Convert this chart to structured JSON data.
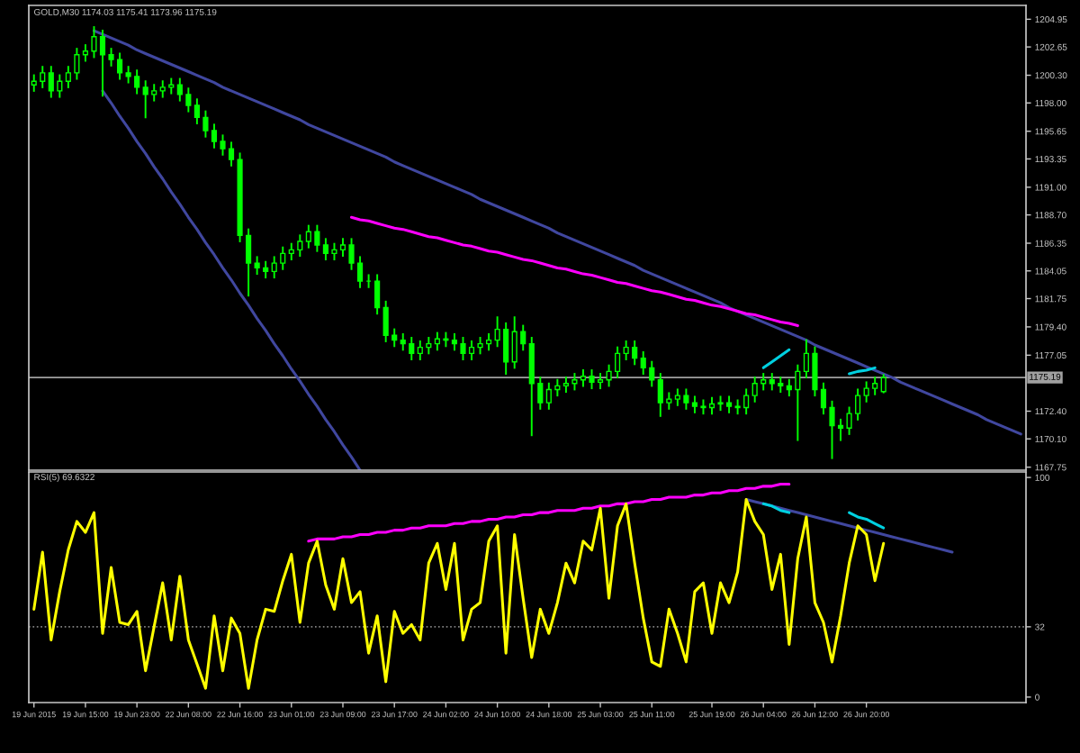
{
  "chart_data": [
    {
      "type": "candlestick",
      "title": "GOLD,M30 1174.03 1175.41 1173.96 1175.19",
      "color": "#00ff00",
      "categories": [
        null,
        null,
        null,
        null,
        null,
        null,
        null,
        null,
        null,
        null,
        null,
        null,
        null,
        null,
        null,
        null,
        null,
        null,
        null,
        null,
        null,
        null,
        null,
        null,
        null,
        null,
        null,
        null,
        null,
        null,
        null,
        null,
        null,
        null,
        null,
        null,
        null,
        null,
        null,
        null,
        null,
        null,
        null,
        null,
        null,
        null,
        null,
        null,
        null,
        null,
        null,
        null,
        null,
        null,
        null,
        null,
        null,
        null,
        null,
        null,
        null,
        null,
        null,
        null,
        null,
        null,
        null,
        null,
        null,
        null,
        null,
        null,
        null,
        null,
        null,
        null,
        null,
        null,
        null,
        null,
        null,
        null,
        null,
        null,
        null,
        null,
        null,
        null,
        null,
        null,
        null,
        null,
        null,
        null,
        null,
        null,
        null,
        null,
        null,
        null,
        null,
        null,
        null,
        null,
        null,
        null,
        null,
        null,
        null,
        null,
        null,
        null,
        null,
        null,
        null,
        null
      ],
      "ohlc": [
        [
          1199.5,
          1200.3,
          1199.0,
          1199.8
        ],
        [
          1199.8,
          1201.0,
          1199.3,
          1200.5
        ],
        [
          1200.5,
          1201.0,
          1198.5,
          1199.0
        ],
        [
          1199.0,
          1200.3,
          1198.5,
          1199.8
        ],
        [
          1199.8,
          1201.0,
          1199.3,
          1200.5
        ],
        [
          1200.5,
          1202.5,
          1200.0,
          1202.0
        ],
        [
          1202.0,
          1202.8,
          1201.5,
          1202.3
        ],
        [
          1202.3,
          1204.3,
          1201.8,
          1203.5
        ],
        [
          1203.5,
          1204.0,
          1198.6,
          1202.0
        ],
        [
          1202.0,
          1202.5,
          1201.1,
          1201.6
        ],
        [
          1201.6,
          1202.1,
          1200.0,
          1200.5
        ],
        [
          1200.5,
          1201.0,
          1199.7,
          1200.2
        ],
        [
          1200.2,
          1200.7,
          1198.8,
          1199.3
        ],
        [
          1199.3,
          1199.8,
          1196.8,
          1198.7
        ],
        [
          1198.7,
          1199.5,
          1198.2,
          1199.0
        ],
        [
          1199.0,
          1199.8,
          1198.5,
          1199.3
        ],
        [
          1199.3,
          1200.0,
          1198.8,
          1199.5
        ],
        [
          1199.5,
          1200.0,
          1198.2,
          1198.7
        ],
        [
          1198.7,
          1199.2,
          1197.3,
          1197.8
        ],
        [
          1197.8,
          1198.3,
          1196.3,
          1196.8
        ],
        [
          1196.8,
          1197.3,
          1195.2,
          1195.7
        ],
        [
          1195.7,
          1196.2,
          1194.3,
          1194.8
        ],
        [
          1194.8,
          1195.3,
          1193.7,
          1194.2
        ],
        [
          1194.2,
          1194.7,
          1192.8,
          1193.3
        ],
        [
          1193.3,
          1193.8,
          1186.5,
          1187.0
        ],
        [
          1187.0,
          1187.5,
          1182.0,
          1184.7
        ],
        [
          1184.7,
          1185.2,
          1183.8,
          1184.3
        ],
        [
          1184.3,
          1184.8,
          1183.5,
          1184.0
        ],
        [
          1184.0,
          1185.2,
          1183.5,
          1184.7
        ],
        [
          1184.7,
          1186.0,
          1184.2,
          1185.5
        ],
        [
          1185.5,
          1186.3,
          1185.0,
          1185.8
        ],
        [
          1185.8,
          1187.0,
          1185.3,
          1186.5
        ],
        [
          1186.5,
          1187.8,
          1186.0,
          1187.3
        ],
        [
          1187.3,
          1187.8,
          1185.7,
          1186.2
        ],
        [
          1186.2,
          1186.7,
          1185.0,
          1185.5
        ],
        [
          1185.5,
          1186.3,
          1185.0,
          1185.8
        ],
        [
          1185.8,
          1186.7,
          1185.3,
          1186.2
        ],
        [
          1186.2,
          1186.7,
          1184.2,
          1184.7
        ],
        [
          1184.7,
          1185.2,
          1182.7,
          1183.2
        ],
        [
          1183.2,
          1183.7,
          1182.7,
          1183.2
        ],
        [
          1183.2,
          1183.7,
          1180.5,
          1181.0
        ],
        [
          1181.0,
          1181.5,
          1178.2,
          1178.7
        ],
        [
          1178.7,
          1179.2,
          1177.8,
          1178.3
        ],
        [
          1178.3,
          1178.8,
          1177.5,
          1178.0
        ],
        [
          1178.0,
          1178.5,
          1176.7,
          1177.2
        ],
        [
          1177.2,
          1178.2,
          1176.7,
          1177.7
        ],
        [
          1177.7,
          1178.5,
          1177.2,
          1178.0
        ],
        [
          1178.0,
          1178.9,
          1177.5,
          1178.4
        ],
        [
          1178.4,
          1178.9,
          1177.8,
          1178.3
        ],
        [
          1178.3,
          1178.8,
          1177.5,
          1178.0
        ],
        [
          1178.0,
          1178.5,
          1176.7,
          1177.2
        ],
        [
          1177.2,
          1178.2,
          1176.7,
          1177.7
        ],
        [
          1177.7,
          1178.5,
          1177.2,
          1178.0
        ],
        [
          1178.0,
          1178.8,
          1177.5,
          1178.3
        ],
        [
          1178.3,
          1180.2,
          1177.8,
          1179.2
        ],
        [
          1179.2,
          1179.7,
          1175.5,
          1176.5
        ],
        [
          1176.5,
          1180.2,
          1176.0,
          1179.0
        ],
        [
          1179.0,
          1179.5,
          1177.5,
          1178.0
        ],
        [
          1178.0,
          1178.5,
          1170.4,
          1174.7
        ],
        [
          1174.7,
          1175.2,
          1172.6,
          1173.1
        ],
        [
          1173.1,
          1174.7,
          1172.6,
          1174.2
        ],
        [
          1174.2,
          1175.0,
          1173.7,
          1174.5
        ],
        [
          1174.5,
          1175.2,
          1174.0,
          1174.7
        ],
        [
          1174.7,
          1175.5,
          1174.2,
          1175.0
        ],
        [
          1175.0,
          1175.8,
          1174.5,
          1175.3
        ],
        [
          1175.3,
          1175.8,
          1174.3,
          1174.8
        ],
        [
          1174.8,
          1175.5,
          1174.3,
          1175.0
        ],
        [
          1175.0,
          1176.2,
          1174.5,
          1175.7
        ],
        [
          1175.7,
          1177.7,
          1175.2,
          1177.2
        ],
        [
          1177.2,
          1178.2,
          1176.7,
          1177.7
        ],
        [
          1177.7,
          1178.2,
          1176.3,
          1176.8
        ],
        [
          1176.8,
          1177.3,
          1175.5,
          1176.0
        ],
        [
          1176.0,
          1176.5,
          1174.5,
          1175.0
        ],
        [
          1175.0,
          1175.5,
          1172.0,
          1173.1
        ],
        [
          1173.1,
          1173.9,
          1172.6,
          1173.4
        ],
        [
          1173.4,
          1174.2,
          1172.9,
          1173.7
        ],
        [
          1173.7,
          1174.2,
          1172.6,
          1173.1
        ],
        [
          1173.1,
          1173.6,
          1172.3,
          1172.8
        ],
        [
          1172.8,
          1173.3,
          1172.2,
          1172.7
        ],
        [
          1172.7,
          1173.5,
          1172.2,
          1173.0
        ],
        [
          1173.0,
          1173.6,
          1172.5,
          1173.1
        ],
        [
          1173.1,
          1173.6,
          1172.3,
          1172.8
        ],
        [
          1172.8,
          1173.3,
          1172.2,
          1172.7
        ],
        [
          1172.7,
          1174.2,
          1172.2,
          1173.7
        ],
        [
          1173.7,
          1175.2,
          1173.2,
          1174.7
        ],
        [
          1174.7,
          1175.5,
          1174.2,
          1175.0
        ],
        [
          1175.0,
          1175.5,
          1174.2,
          1174.7
        ],
        [
          1174.7,
          1175.2,
          1174.0,
          1174.5
        ],
        [
          1174.5,
          1175.0,
          1173.7,
          1174.2
        ],
        [
          1174.2,
          1176.2,
          1170.0,
          1175.7
        ],
        [
          1175.7,
          1178.3,
          1175.2,
          1177.2
        ],
        [
          1177.2,
          1177.7,
          1173.7,
          1174.2
        ],
        [
          1174.2,
          1174.7,
          1172.2,
          1172.7
        ],
        [
          1172.7,
          1173.2,
          1168.5,
          1171.2
        ],
        [
          1171.2,
          1171.7,
          1170.0,
          1171.0
        ],
        [
          1171.0,
          1172.7,
          1170.5,
          1172.2
        ],
        [
          1172.2,
          1174.2,
          1171.7,
          1173.7
        ],
        [
          1173.7,
          1174.8,
          1173.2,
          1174.3
        ],
        [
          1174.3,
          1175.2,
          1173.8,
          1174.7
        ],
        [
          1174.03,
          1175.41,
          1173.96,
          1175.19
        ],
        null,
        null,
        null,
        null,
        null,
        null,
        null,
        null,
        null,
        null,
        null,
        null,
        null,
        null,
        null,
        null
      ],
      "series": [
        {
          "type": "line",
          "color": "#40479f",
          "values": [
            null,
            null,
            null,
            null,
            null,
            null,
            null,
            1204.0,
            1203.7,
            1203.4,
            1203.1,
            1202.8,
            1202.4,
            1202.1,
            1201.8,
            1201.5,
            1201.2,
            1200.9,
            1200.6,
            1200.3,
            1200.0,
            1199.7,
            1199.3,
            1199.0,
            1198.7,
            1198.4,
            1198.1,
            1197.8,
            1197.5,
            1197.2,
            1196.9,
            1196.6,
            1196.2,
            1195.9,
            1195.6,
            1195.3,
            1195.0,
            1194.7,
            1194.4,
            1194.1,
            1193.8,
            1193.5,
            1193.1,
            1192.8,
            1192.5,
            1192.2,
            1191.9,
            1191.6,
            1191.3,
            1191.0,
            1190.7,
            1190.4,
            1190.0,
            1189.7,
            1189.4,
            1189.1,
            1188.8,
            1188.5,
            1188.2,
            1187.9,
            1187.6,
            1187.2,
            1186.9,
            1186.6,
            1186.3,
            1186.0,
            1185.7,
            1185.4,
            1185.1,
            1184.8,
            1184.5,
            1184.1,
            1183.8,
            1183.5,
            1183.2,
            1182.9,
            1182.6,
            1182.3,
            1182.0,
            1181.7,
            1181.4,
            1181.0,
            1180.7,
            1180.4,
            1180.1,
            1179.8,
            1179.5,
            1179.2,
            1178.9,
            1178.6,
            1178.3,
            1177.9,
            1177.6,
            1177.3,
            1177.0,
            1176.7,
            1176.4,
            1176.1,
            1175.8,
            1175.5,
            1175.2,
            1174.8,
            1174.5,
            1174.2,
            1173.9,
            1173.6,
            1173.3,
            1173.0,
            1172.7,
            1172.4,
            1172.1,
            1171.7,
            1171.4,
            1171.1,
            1170.8,
            1170.5
          ]
        },
        {
          "type": "line",
          "color": "#40479f",
          "values": [
            null,
            null,
            null,
            null,
            null,
            null,
            null,
            null,
            1199.0,
            1198.0,
            1196.9,
            1195.9,
            1194.8,
            1193.8,
            1192.7,
            1191.7,
            1190.6,
            1189.6,
            1188.5,
            1187.5,
            1186.4,
            1185.4,
            1184.3,
            1183.3,
            1182.2,
            1181.2,
            1180.1,
            1179.1,
            1178.0,
            1177.0,
            1175.9,
            1174.9,
            1173.8,
            1172.8,
            1171.7,
            1170.7,
            1169.6,
            1168.6,
            1167.5,
            null,
            null,
            null,
            null,
            null,
            null,
            null,
            null,
            null,
            null,
            null,
            null,
            null,
            null,
            null,
            null,
            null,
            null,
            null,
            null,
            null,
            null,
            null,
            null,
            null,
            null,
            null,
            null,
            null,
            null,
            null,
            null,
            null,
            null,
            null,
            null,
            null,
            null,
            null,
            null,
            null,
            null,
            null,
            null,
            null,
            null,
            null,
            null,
            null,
            null,
            null,
            null,
            null,
            null,
            null,
            null,
            null,
            null,
            null,
            null,
            null,
            null,
            null,
            null,
            null,
            null,
            null,
            null,
            null,
            null,
            null,
            null,
            null,
            null,
            null,
            null,
            null
          ]
        },
        {
          "type": "line",
          "color": "#ff00ff",
          "values": [
            null,
            null,
            null,
            null,
            null,
            null,
            null,
            null,
            null,
            null,
            null,
            null,
            null,
            null,
            null,
            null,
            null,
            null,
            null,
            null,
            null,
            null,
            null,
            null,
            null,
            null,
            null,
            null,
            null,
            null,
            null,
            null,
            null,
            null,
            null,
            null,
            null,
            1188.5,
            1188.3,
            1188.2,
            1188.0,
            1187.8,
            1187.6,
            1187.5,
            1187.3,
            1187.1,
            1186.9,
            1186.8,
            1186.6,
            1186.4,
            1186.2,
            1186.1,
            1185.9,
            1185.7,
            1185.6,
            1185.4,
            1185.2,
            1185.0,
            1184.9,
            1184.7,
            1184.5,
            1184.3,
            1184.2,
            1184.0,
            1183.8,
            1183.7,
            1183.5,
            1183.3,
            1183.1,
            1183.0,
            1182.8,
            1182.6,
            1182.4,
            1182.3,
            1182.1,
            1181.9,
            1181.7,
            1181.6,
            1181.4,
            1181.2,
            1181.1,
            1180.9,
            1180.7,
            1180.5,
            1180.4,
            1180.2,
            1180.0,
            1179.8,
            1179.7,
            1179.5,
            null,
            null,
            null,
            null,
            null,
            null,
            null,
            null,
            null,
            null,
            null,
            null,
            null,
            null,
            null,
            null,
            null,
            null,
            null,
            null,
            null,
            null,
            null,
            null,
            null,
            null
          ]
        },
        {
          "type": "line",
          "color": "#00d0e0",
          "values": [
            null,
            null,
            null,
            null,
            null,
            null,
            null,
            null,
            null,
            null,
            null,
            null,
            null,
            null,
            null,
            null,
            null,
            null,
            null,
            null,
            null,
            null,
            null,
            null,
            null,
            null,
            null,
            null,
            null,
            null,
            null,
            null,
            null,
            null,
            null,
            null,
            null,
            null,
            null,
            null,
            null,
            null,
            null,
            null,
            null,
            null,
            null,
            null,
            null,
            null,
            null,
            null,
            null,
            null,
            null,
            null,
            null,
            null,
            null,
            null,
            null,
            null,
            null,
            null,
            null,
            null,
            null,
            null,
            null,
            null,
            null,
            null,
            null,
            null,
            null,
            null,
            null,
            null,
            null,
            null,
            null,
            null,
            null,
            null,
            null,
            1176.0,
            1176.5,
            1177.0,
            1177.5,
            null,
            null,
            null,
            null,
            null,
            null,
            null,
            null,
            null,
            null,
            null,
            null,
            null,
            null,
            null,
            null,
            null,
            null,
            null,
            null,
            null,
            null,
            null,
            null,
            null,
            null,
            null
          ]
        },
        {
          "type": "line",
          "color": "#00d0e0",
          "values": [
            null,
            null,
            null,
            null,
            null,
            null,
            null,
            null,
            null,
            null,
            null,
            null,
            null,
            null,
            null,
            null,
            null,
            null,
            null,
            null,
            null,
            null,
            null,
            null,
            null,
            null,
            null,
            null,
            null,
            null,
            null,
            null,
            null,
            null,
            null,
            null,
            null,
            null,
            null,
            null,
            null,
            null,
            null,
            null,
            null,
            null,
            null,
            null,
            null,
            null,
            null,
            null,
            null,
            null,
            null,
            null,
            null,
            null,
            null,
            null,
            null,
            null,
            null,
            null,
            null,
            null,
            null,
            null,
            null,
            null,
            null,
            null,
            null,
            null,
            null,
            null,
            null,
            null,
            null,
            null,
            null,
            null,
            null,
            null,
            null,
            null,
            null,
            null,
            null,
            null,
            null,
            null,
            null,
            null,
            null,
            1175.5,
            1175.7,
            1175.8,
            1176.0,
            null,
            null,
            null,
            null,
            null,
            null,
            null,
            null,
            null,
            null,
            null,
            null,
            null,
            null,
            null,
            null,
            null
          ]
        }
      ],
      "ylim": [
        1167.5,
        1206.1
      ],
      "yticks": [
        {
          "value": 1204.95,
          "label": "1204.95"
        },
        {
          "value": 1202.65,
          "label": "1202.65"
        },
        {
          "value": 1200.3,
          "label": "1200.30"
        },
        {
          "value": 1198.0,
          "label": "1198.00"
        },
        {
          "value": 1195.65,
          "label": "1195.65"
        },
        {
          "value": 1193.35,
          "label": "1193.35"
        },
        {
          "value": 1191.0,
          "label": "1191.00"
        },
        {
          "value": 1188.7,
          "label": "1188.70"
        },
        {
          "value": 1186.35,
          "label": "1186.35"
        },
        {
          "value": 1184.05,
          "label": "1184.05"
        },
        {
          "value": 1181.75,
          "label": "1181.75"
        },
        {
          "value": 1179.4,
          "label": "1179.40"
        },
        {
          "value": 1177.05,
          "label": "1177.05"
        },
        {
          "value": 1172.4,
          "label": "1172.40"
        },
        {
          "value": 1170.1,
          "label": "1170.10"
        },
        {
          "value": 1167.75,
          "label": "1167.75"
        }
      ],
      "tick_labels": "y",
      "ref_lines": [
        {
          "axis": "y",
          "value": 1175.19,
          "label": "1175.19",
          "color": "#a0a0a0"
        }
      ]
    },
    {
      "type": "line",
      "title": "RSI(5) 69.6322",
      "categories": [
        "19 Jun 2015",
        null,
        null,
        null,
        null,
        null,
        "19 Jun 15:00",
        null,
        null,
        null,
        null,
        null,
        "19 Jun 23:00",
        null,
        null,
        null,
        null,
        null,
        "22 Jun 08:00",
        null,
        null,
        null,
        null,
        null,
        "22 Jun 16:00",
        null,
        null,
        null,
        null,
        null,
        "23 Jun 01:00",
        null,
        null,
        null,
        null,
        null,
        "23 Jun 09:00",
        null,
        null,
        null,
        null,
        null,
        "23 Jun 17:00",
        null,
        null,
        null,
        null,
        null,
        "24 Jun 02:00",
        null,
        null,
        null,
        null,
        null,
        "24 Jun 10:00",
        null,
        null,
        null,
        null,
        null,
        "24 Jun 18:00",
        null,
        null,
        null,
        null,
        null,
        "25 Jun 03:00",
        null,
        null,
        null,
        null,
        null,
        "25 Jun 11:00",
        null,
        null,
        null,
        null,
        null,
        null,
        "25 Jun 19:00",
        null,
        null,
        null,
        null,
        null,
        "26 Jun 04:00",
        null,
        null,
        null,
        null,
        null,
        "26 Jun 12:00",
        null,
        null,
        null,
        null,
        null,
        "26 Jun 20:00",
        null,
        null,
        null,
        null,
        null,
        null,
        null,
        null,
        null,
        null,
        null,
        null,
        null,
        null,
        null,
        null,
        null,
        null
      ],
      "series": [
        {
          "color": "#ffff00",
          "values": [
            40,
            66,
            26,
            48,
            67,
            80,
            75,
            84,
            29,
            59,
            34,
            33,
            39,
            12,
            32,
            52,
            26,
            55,
            26,
            15,
            4,
            37,
            12,
            36,
            29,
            4,
            26,
            40,
            39,
            53,
            65,
            34,
            61,
            71,
            51,
            40,
            63,
            43,
            48,
            20,
            37,
            7,
            39,
            29,
            33,
            26,
            61,
            70,
            49,
            70,
            26,
            40,
            43,
            71,
            78,
            20,
            74,
            45,
            18,
            40,
            29,
            43,
            61,
            52,
            71,
            67,
            86,
            45,
            78,
            88,
            61,
            36,
            16,
            14,
            40,
            29,
            16,
            48,
            52,
            29,
            52,
            43,
            57,
            90,
            80,
            74,
            49,
            65,
            24,
            63,
            82,
            43,
            34,
            16,
            37,
            61,
            78,
            74,
            53,
            70,
            null,
            null,
            null,
            null,
            null,
            null,
            null,
            null,
            null,
            null,
            null,
            null,
            null,
            null,
            null,
            null
          ]
        },
        {
          "type": "line",
          "color": "#ff00ff",
          "values": [
            null,
            null,
            null,
            null,
            null,
            null,
            null,
            null,
            null,
            null,
            null,
            null,
            null,
            null,
            null,
            null,
            null,
            null,
            null,
            null,
            null,
            null,
            null,
            null,
            null,
            null,
            null,
            null,
            null,
            null,
            null,
            null,
            71,
            72,
            72,
            72,
            73,
            73,
            74,
            74,
            75,
            75,
            76,
            76,
            77,
            77,
            78,
            78,
            78,
            79,
            79,
            80,
            80,
            81,
            81,
            82,
            82,
            83,
            83,
            84,
            84,
            85,
            85,
            85,
            86,
            86,
            87,
            87,
            88,
            88,
            89,
            89,
            90,
            90,
            91,
            91,
            91,
            92,
            92,
            93,
            93,
            94,
            94,
            95,
            95,
            96,
            96,
            97,
            97,
            null,
            null,
            null,
            null,
            null,
            null,
            null,
            null,
            null,
            null,
            null,
            null,
            null,
            null,
            null,
            null,
            null,
            null,
            null,
            null,
            null,
            null,
            null,
            null,
            null,
            null,
            null
          ]
        },
        {
          "type": "line",
          "color": "#40479f",
          "values": [
            null,
            null,
            null,
            null,
            null,
            null,
            null,
            null,
            null,
            null,
            null,
            null,
            null,
            null,
            null,
            null,
            null,
            null,
            null,
            null,
            null,
            null,
            null,
            null,
            null,
            null,
            null,
            null,
            null,
            null,
            null,
            null,
            null,
            null,
            null,
            null,
            null,
            null,
            null,
            null,
            null,
            null,
            null,
            null,
            null,
            null,
            null,
            null,
            null,
            null,
            null,
            null,
            null,
            null,
            null,
            null,
            null,
            null,
            null,
            null,
            null,
            null,
            null,
            null,
            null,
            null,
            null,
            null,
            null,
            null,
            null,
            null,
            null,
            null,
            null,
            null,
            null,
            null,
            null,
            null,
            null,
            null,
            null,
            90,
            89,
            88,
            87,
            86,
            85,
            84,
            83,
            82,
            81,
            80,
            79,
            78,
            77,
            76,
            75,
            74,
            73,
            72,
            71,
            70,
            69,
            68,
            67,
            66,
            null,
            null,
            null,
            null,
            null,
            null,
            null,
            null
          ]
        },
        {
          "type": "line",
          "color": "#00d0e0",
          "values": [
            null,
            null,
            null,
            null,
            null,
            null,
            null,
            null,
            null,
            null,
            null,
            null,
            null,
            null,
            null,
            null,
            null,
            null,
            null,
            null,
            null,
            null,
            null,
            null,
            null,
            null,
            null,
            null,
            null,
            null,
            null,
            null,
            null,
            null,
            null,
            null,
            null,
            null,
            null,
            null,
            null,
            null,
            null,
            null,
            null,
            null,
            null,
            null,
            null,
            null,
            null,
            null,
            null,
            null,
            null,
            null,
            null,
            null,
            null,
            null,
            null,
            null,
            null,
            null,
            null,
            null,
            null,
            null,
            null,
            null,
            null,
            null,
            null,
            null,
            null,
            null,
            null,
            null,
            null,
            null,
            null,
            null,
            null,
            null,
            null,
            88,
            87,
            85,
            84,
            null,
            null,
            null,
            null,
            null,
            null,
            null,
            null,
            null,
            null,
            null,
            null,
            null,
            null,
            null,
            null,
            null,
            null,
            null,
            null,
            null,
            null,
            null,
            null,
            null,
            null,
            null
          ]
        },
        {
          "type": "line",
          "color": "#00d0e0",
          "values": [
            null,
            null,
            null,
            null,
            null,
            null,
            null,
            null,
            null,
            null,
            null,
            null,
            null,
            null,
            null,
            null,
            null,
            null,
            null,
            null,
            null,
            null,
            null,
            null,
            null,
            null,
            null,
            null,
            null,
            null,
            null,
            null,
            null,
            null,
            null,
            null,
            null,
            null,
            null,
            null,
            null,
            null,
            null,
            null,
            null,
            null,
            null,
            null,
            null,
            null,
            null,
            null,
            null,
            null,
            null,
            null,
            null,
            null,
            null,
            null,
            null,
            null,
            null,
            null,
            null,
            null,
            null,
            null,
            null,
            null,
            null,
            null,
            null,
            null,
            null,
            null,
            null,
            null,
            null,
            null,
            null,
            null,
            null,
            null,
            null,
            null,
            null,
            null,
            null,
            null,
            null,
            null,
            null,
            null,
            null,
            84,
            82,
            81,
            79,
            77,
            null,
            null,
            null,
            null,
            null,
            null,
            null,
            null,
            null,
            null,
            null,
            null,
            null,
            null,
            null,
            null
          ]
        }
      ],
      "ylim": [
        -2.5,
        102.5
      ],
      "yticks": [
        100,
        32,
        0
      ],
      "ref_lines": [
        {
          "axis": "y",
          "value": 32,
          "color": "#808080",
          "line_style": "dotted"
        }
      ]
    }
  ]
}
